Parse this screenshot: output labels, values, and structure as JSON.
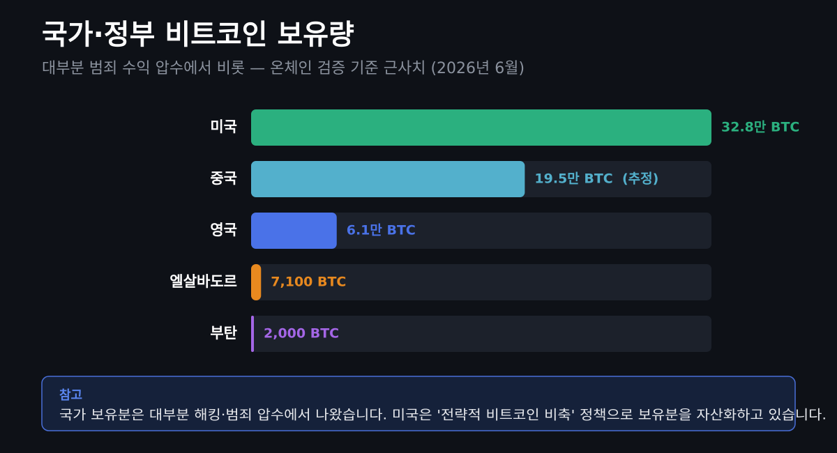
{
  "chart_data": {
    "type": "bar",
    "orientation": "horizontal",
    "title": "국가·정부 비트코인 보유량",
    "subtitle": "대부분 범죄 수익 압수에서 비롯 — 온체인 검증 기준 근사치 (2026년 6월)",
    "categories": [
      "미국",
      "중국",
      "영국",
      "엘살바도르",
      "부탄"
    ],
    "values": [
      328000,
      195000,
      61000,
      7100,
      2000
    ],
    "value_labels": [
      "32.8만 BTC",
      "19.5만 BTC  (추정)",
      "6.1만 BTC",
      "7,100 BTC",
      "2,000 BTC"
    ],
    "colors": [
      "#2bb07f",
      "#53b0cc",
      "#4a72e8",
      "#e8891f",
      "#a466e6"
    ]
  },
  "note": {
    "title": "참고",
    "text": "국가 보유분은 대부분 해킹·범죄 압수에서 나왔습니다. 미국은 '전략적 비트코인 비축' 정책으로 보유분을 자산화하고 있습니다."
  }
}
